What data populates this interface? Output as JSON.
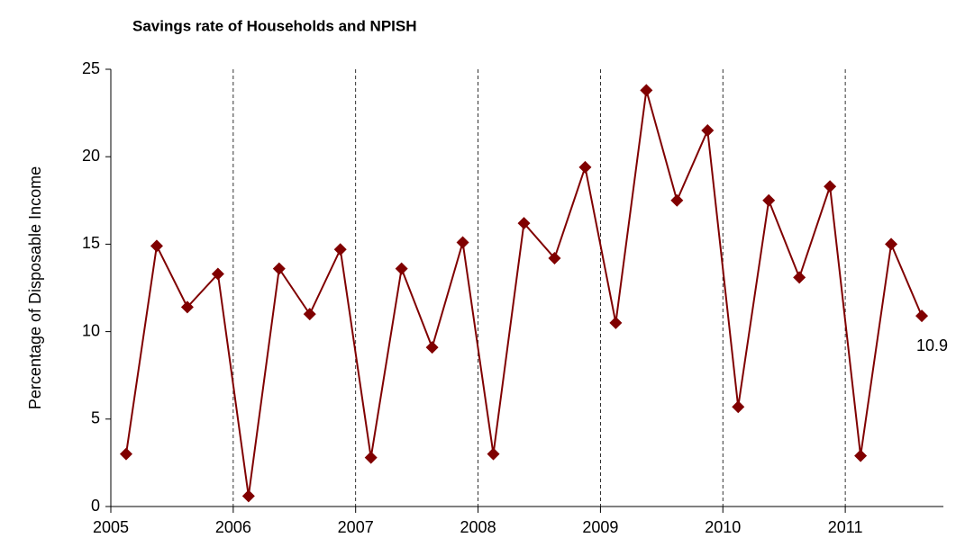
{
  "chart_data": {
    "type": "line",
    "title": "Savings rate of Households and NPISH",
    "y_label": "Percentage of Disposable Income",
    "x": [
      2005.125,
      2005.375,
      2005.625,
      2005.875,
      2006.125,
      2006.375,
      2006.625,
      2006.875,
      2007.125,
      2007.375,
      2007.625,
      2007.875,
      2008.125,
      2008.375,
      2008.625,
      2008.875,
      2009.125,
      2009.375,
      2009.625,
      2009.875,
      2010.125,
      2010.375,
      2010.625,
      2010.875,
      2011.125,
      2011.375,
      2011.625
    ],
    "values": [
      3.0,
      14.9,
      11.4,
      13.3,
      0.6,
      13.6,
      11.0,
      14.7,
      2.8,
      13.6,
      9.1,
      15.1,
      3.0,
      16.2,
      14.2,
      19.4,
      10.5,
      23.8,
      17.5,
      21.5,
      5.7,
      17.5,
      13.1,
      18.3,
      2.9,
      15.0,
      10.9
    ],
    "color": "#800000",
    "data_labels": "last",
    "xlim": [
      2005,
      2011.75
    ],
    "xticks": [
      2005,
      2006,
      2007,
      2008,
      2009,
      2010,
      2011
    ],
    "ylim": [
      0,
      25
    ],
    "yticks": [
      0,
      5,
      10,
      15,
      20,
      25
    ],
    "xgrid": true
  }
}
